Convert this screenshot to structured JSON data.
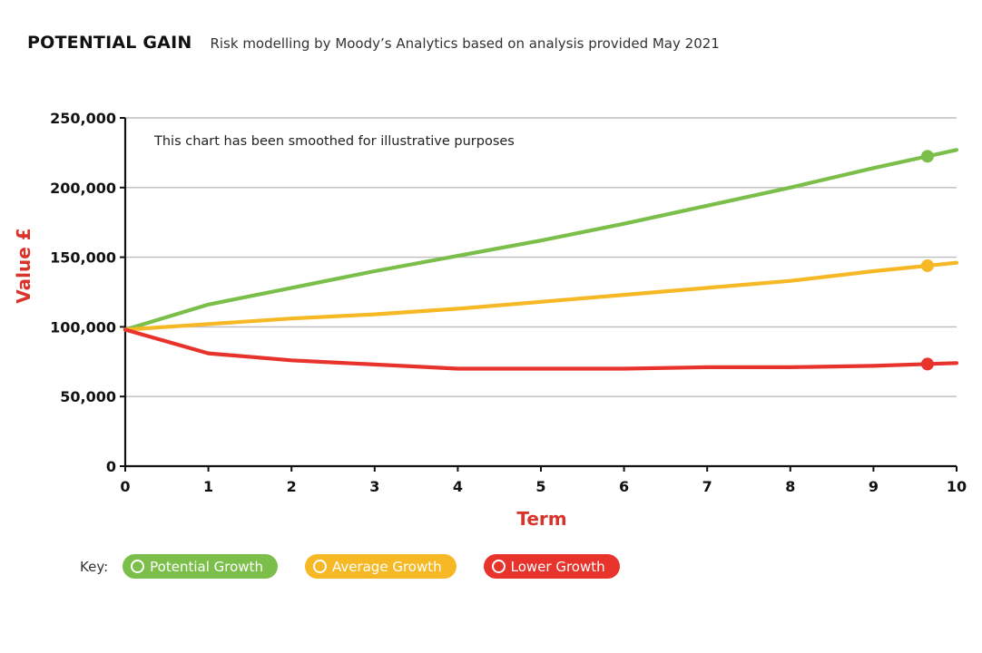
{
  "header": {
    "title": "POTENTIAL GAIN",
    "subtitle": "Risk modelling by Moody’s Analytics based on analysis provided May 2021"
  },
  "chart_data": {
    "type": "line",
    "title": "POTENTIAL GAIN",
    "subtitle": "Risk modelling by Moody’s Analytics based on analysis provided May 2021",
    "xlabel": "Term",
    "ylabel": "Value £",
    "annotation": "This chart has been smoothed for illustrative purposes",
    "xlim": [
      0,
      10
    ],
    "ylim": [
      0,
      250000
    ],
    "x_ticks": [
      "0",
      "1",
      "2",
      "3",
      "4",
      "5",
      "6",
      "7",
      "8",
      "9",
      "10"
    ],
    "y_ticks": [
      {
        "value": 0,
        "label": "0"
      },
      {
        "value": 50000,
        "label": "50,000"
      },
      {
        "value": 100000,
        "label": "100,000"
      },
      {
        "value": 150000,
        "label": "150,000"
      },
      {
        "value": 200000,
        "label": "200,000"
      },
      {
        "value": 250000,
        "label": "250,000"
      }
    ],
    "grid": true,
    "x": [
      0,
      1,
      2,
      3,
      4,
      5,
      6,
      7,
      8,
      9,
      10
    ],
    "series": [
      {
        "name": "Potential Growth",
        "color": "#7bbf4a",
        "values": [
          98000,
          116000,
          128000,
          140000,
          151000,
          162000,
          174000,
          187000,
          200000,
          214000,
          227000
        ],
        "marker_x": 9.65
      },
      {
        "name": "Average Growth",
        "color": "#f6b824",
        "values": [
          98000,
          102000,
          106000,
          109000,
          113000,
          118000,
          123000,
          128000,
          133000,
          140000,
          146000
        ],
        "marker_x": 9.65
      },
      {
        "name": "Lower Growth",
        "color": "#e8332c",
        "values": [
          98000,
          81000,
          76000,
          73000,
          70000,
          70000,
          70000,
          71000,
          71000,
          72000,
          74000
        ],
        "marker_x": 9.65
      }
    ]
  },
  "legend": {
    "label": "Key:",
    "items": [
      {
        "label": "Potential Growth",
        "color": "#7bbf4a"
      },
      {
        "label": "Average Growth",
        "color": "#f6b824"
      },
      {
        "label": "Lower Growth",
        "color": "#e8332c"
      }
    ]
  },
  "colors": {
    "axis_label": "#d8342c",
    "grid": "#bdbdbd",
    "axis": "#111111"
  }
}
